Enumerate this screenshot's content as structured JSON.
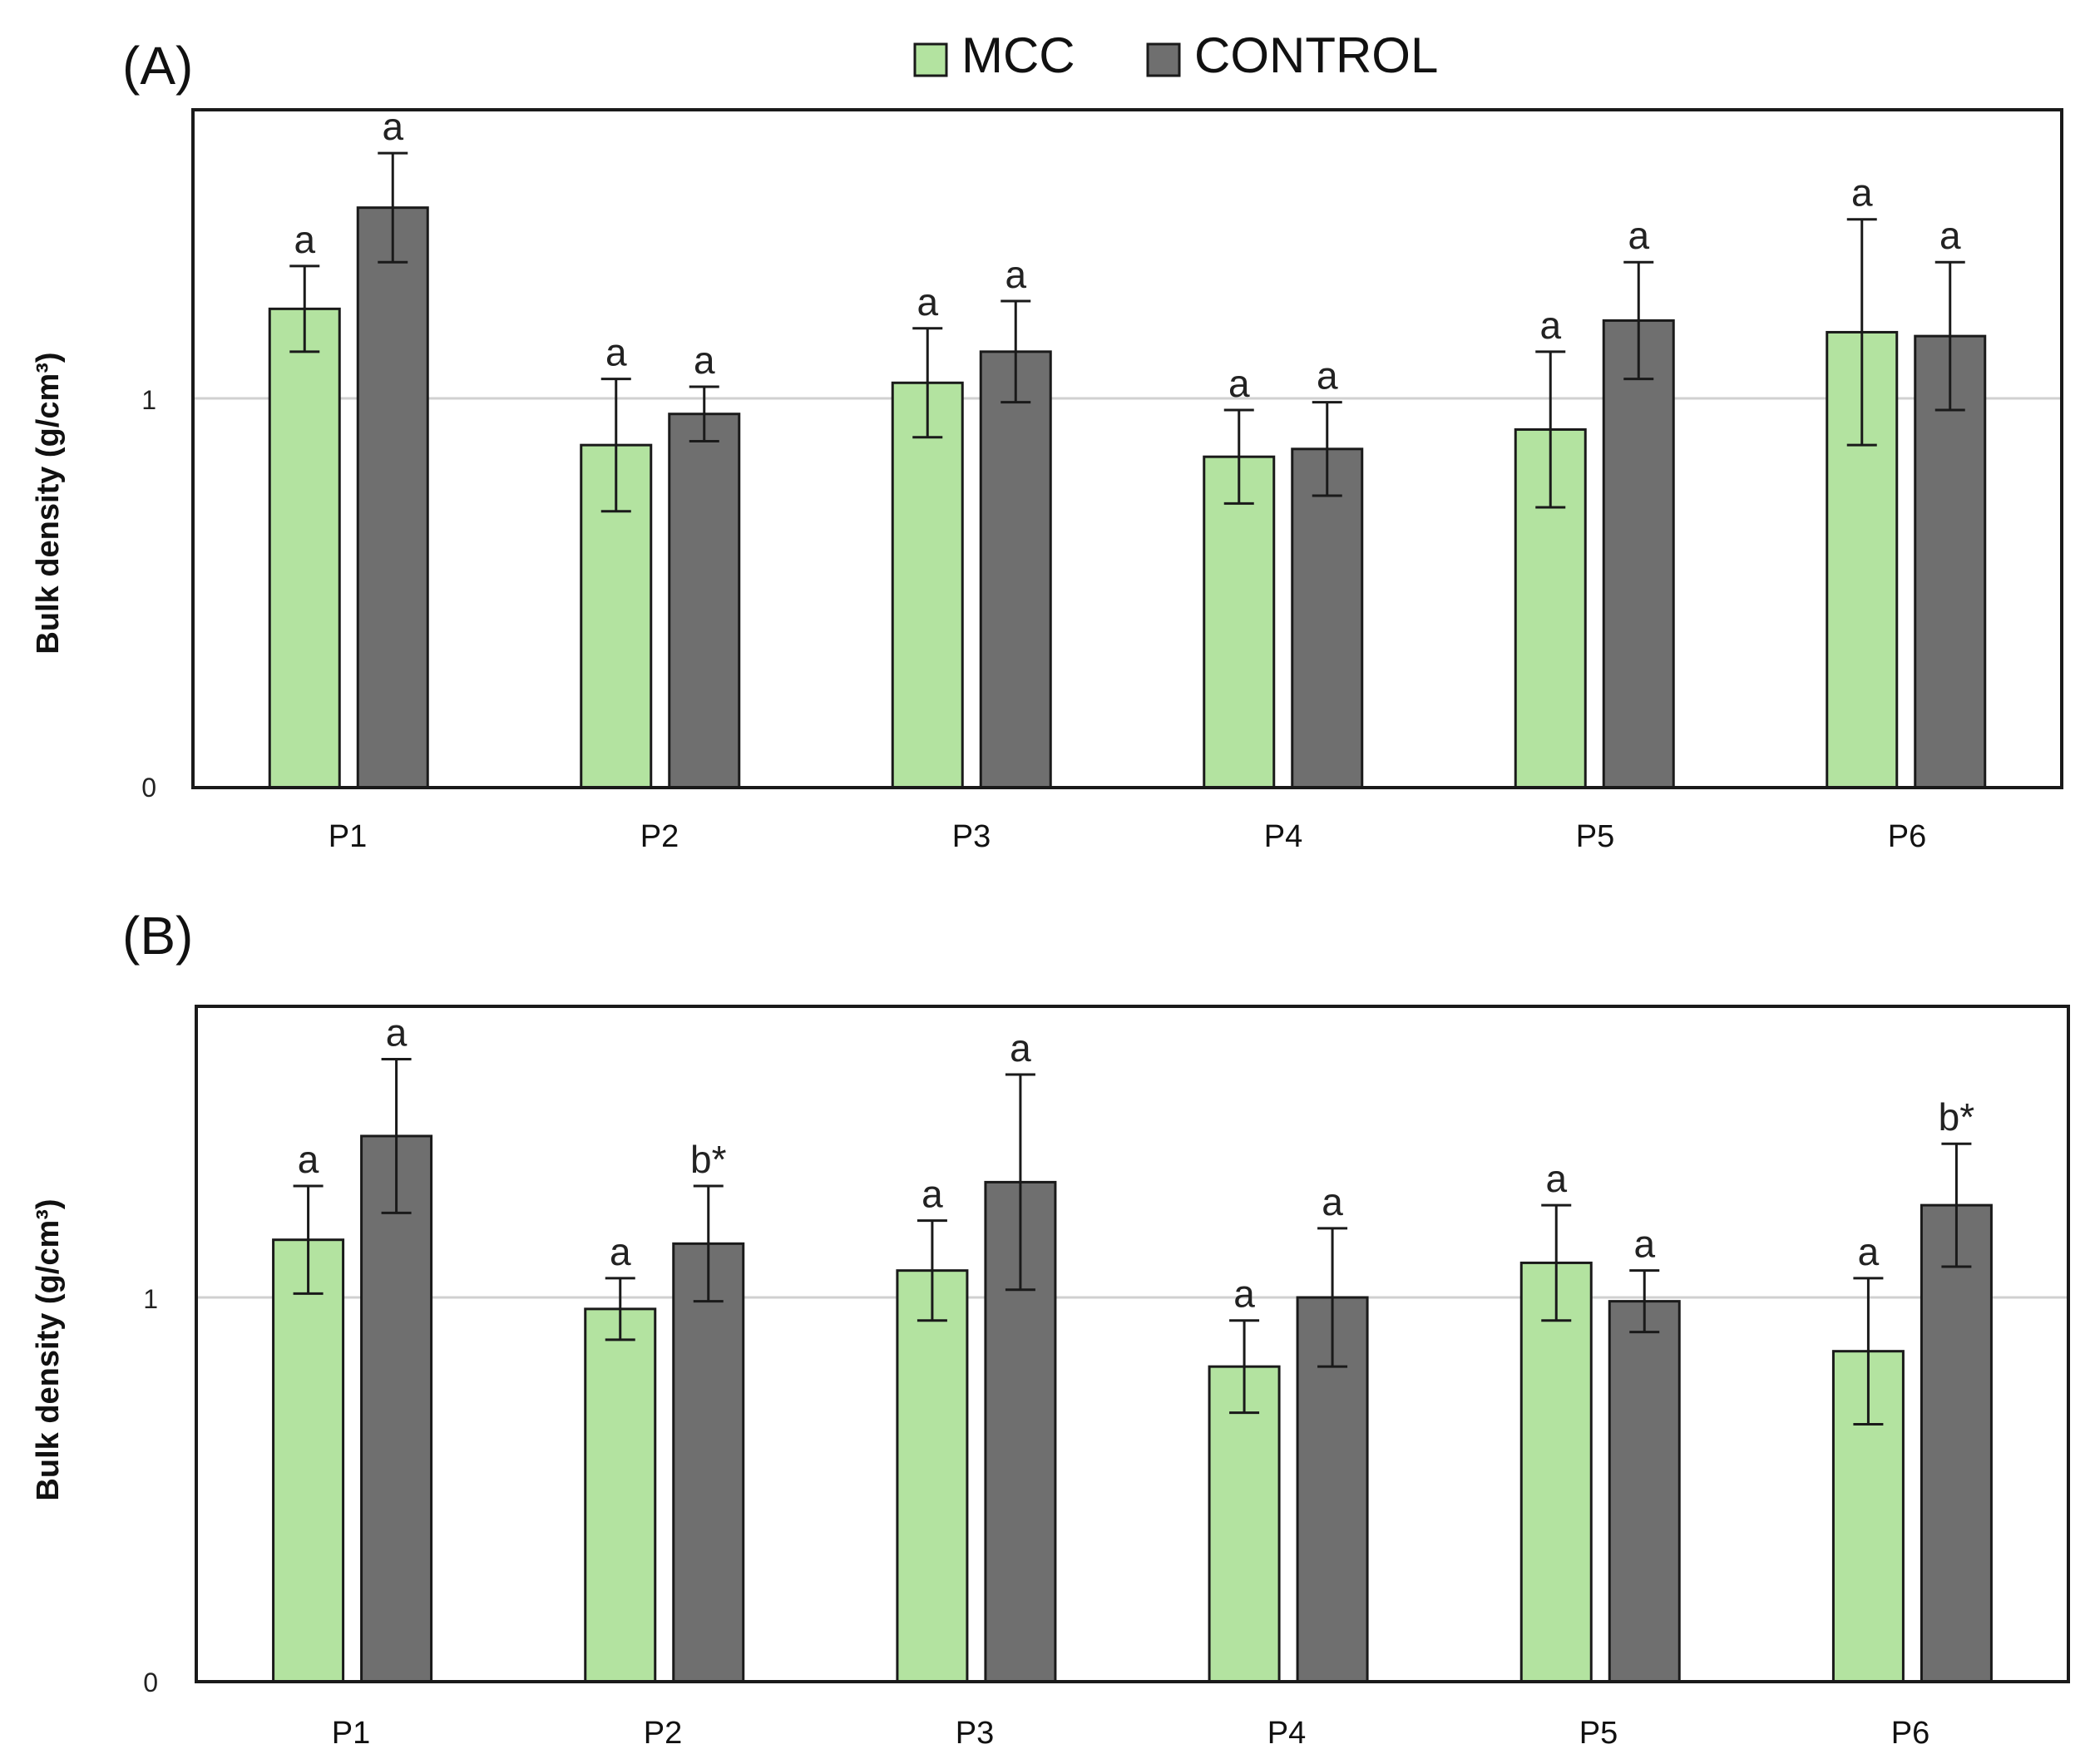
{
  "legend": {
    "items": [
      {
        "label": "MCC",
        "color": "#b3e3a0"
      },
      {
        "label": "CONTROL",
        "color": "#6f6f6f"
      }
    ]
  },
  "colors": {
    "mcc": "#b3e3a0",
    "control": "#6f6f6f",
    "edge": "#1a1a1a",
    "grid": "#d0d0d0"
  },
  "chart_data": [
    {
      "type": "bar",
      "panel_label": "(A)",
      "title": "",
      "xlabel": "",
      "ylabel": "Bulk density (g/cm³)",
      "ylim": [
        0,
        1.75
      ],
      "y_ticks": [
        0,
        1
      ],
      "y_tick_labels": [
        "0",
        "1"
      ],
      "grid": true,
      "categories": [
        "P1",
        "P2",
        "P3",
        "P4",
        "P5",
        "P6"
      ],
      "series": [
        {
          "name": "MCC",
          "values": [
            1.23,
            0.88,
            1.04,
            0.85,
            0.92,
            1.17
          ],
          "errors": [
            0.11,
            0.17,
            0.14,
            0.12,
            0.2,
            0.29
          ],
          "labels": [
            "a",
            "a",
            "a",
            "a",
            "a",
            "a"
          ]
        },
        {
          "name": "CONTROL",
          "values": [
            1.49,
            0.96,
            1.12,
            0.87,
            1.2,
            1.16
          ],
          "errors": [
            0.14,
            0.07,
            0.13,
            0.12,
            0.15,
            0.19
          ],
          "labels": [
            "a",
            "a",
            "a",
            "a",
            "a",
            "a"
          ]
        }
      ]
    },
    {
      "type": "bar",
      "panel_label": "(B)",
      "title": "",
      "xlabel": "",
      "ylabel": "Bulk density (g/cm³)",
      "ylim": [
        0,
        1.75
      ],
      "y_ticks": [
        0,
        1
      ],
      "y_tick_labels": [
        "0",
        "1"
      ],
      "grid": true,
      "categories": [
        "P1",
        "P2",
        "P3",
        "P4",
        "P5",
        "P6"
      ],
      "series": [
        {
          "name": "MCC",
          "values": [
            1.15,
            0.97,
            1.07,
            0.82,
            1.09,
            0.86
          ],
          "errors": [
            0.14,
            0.08,
            0.13,
            0.12,
            0.15,
            0.19
          ],
          "labels": [
            "a",
            "a",
            "a",
            "a",
            "a",
            "a"
          ]
        },
        {
          "name": "CONTROL",
          "values": [
            1.42,
            1.14,
            1.3,
            1.0,
            0.99,
            1.24
          ],
          "errors": [
            0.2,
            0.15,
            0.28,
            0.18,
            0.08,
            0.16
          ],
          "labels": [
            "a",
            "b*",
            "a",
            "a",
            "a",
            "b*"
          ]
        }
      ]
    }
  ]
}
